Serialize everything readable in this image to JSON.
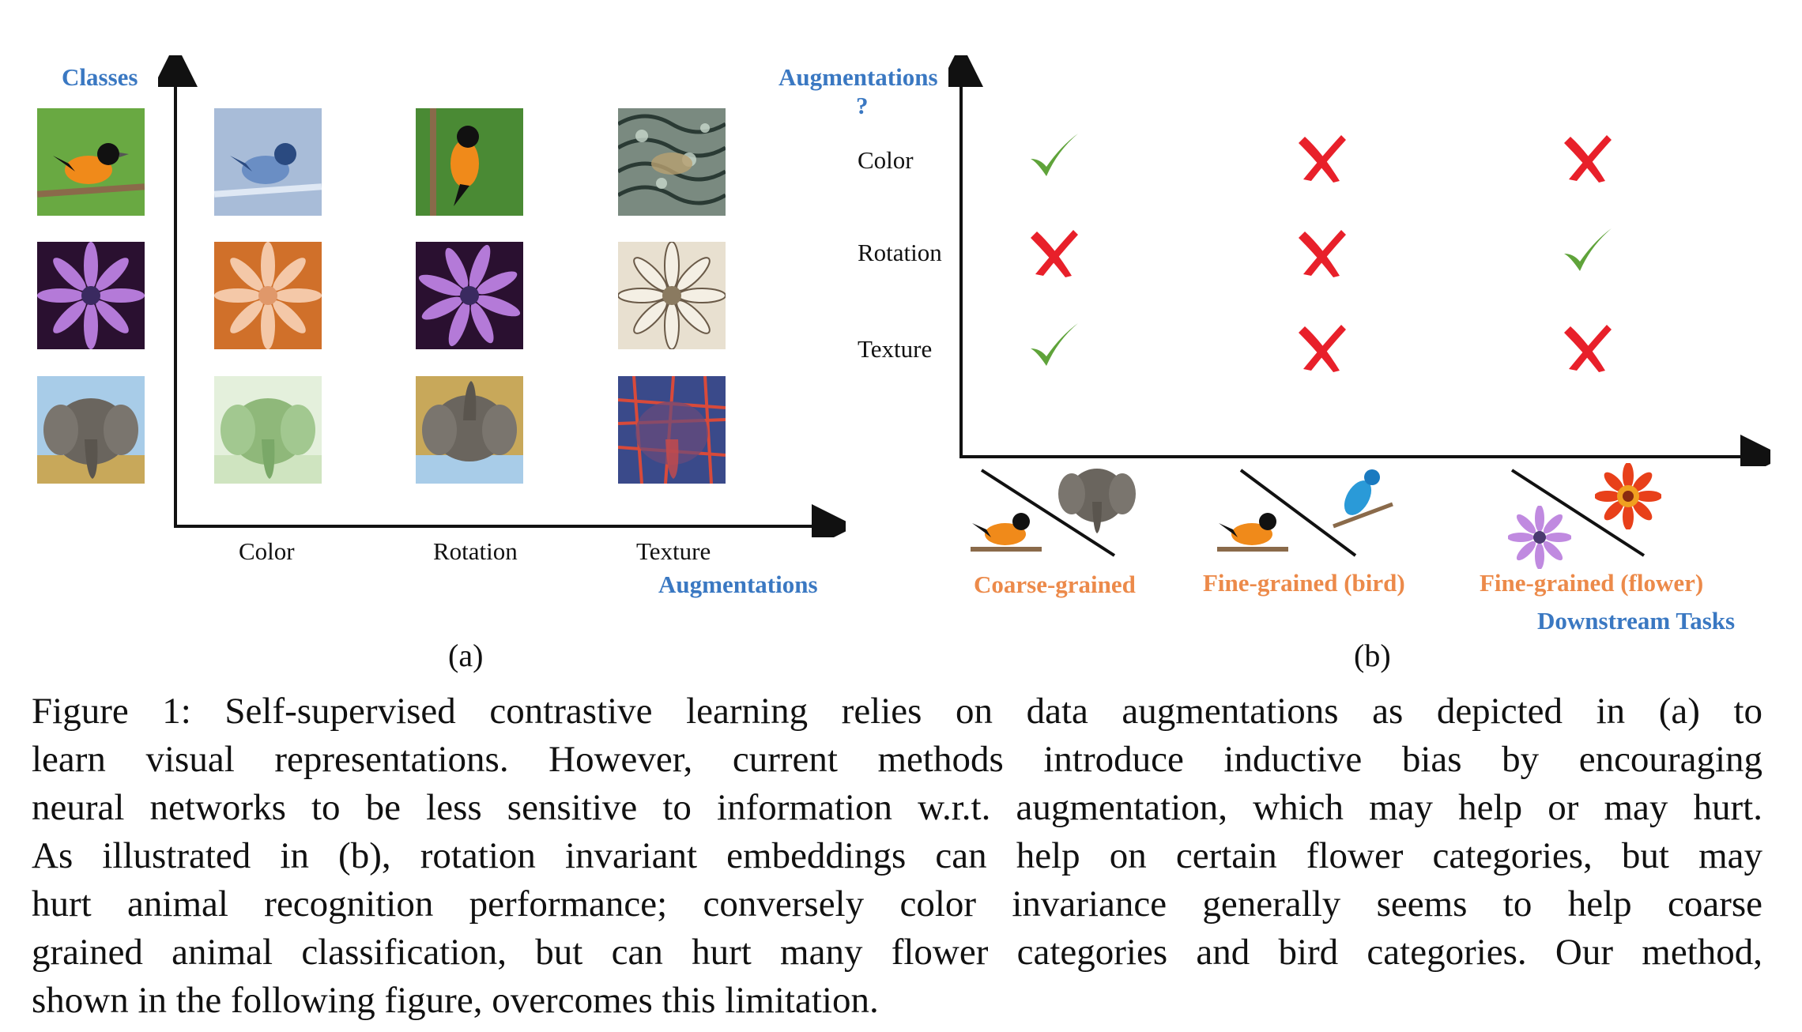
{
  "panel_a": {
    "y_axis_label": "Classes",
    "x_axis_label": "Augmentations",
    "x_ticks": [
      "Color",
      "Rotation",
      "Texture"
    ],
    "sub_label": "(a)",
    "classes": [
      "bird",
      "flower",
      "elephant"
    ]
  },
  "panel_b": {
    "y_axis_label_line1": "Augmentations",
    "y_axis_label_line2": "?",
    "x_axis_label": "Downstream Tasks",
    "rows": [
      "Color",
      "Rotation",
      "Texture"
    ],
    "tasks": [
      "Coarse-grained",
      "Fine-grained (bird)",
      "Fine-grained (flower)"
    ],
    "sub_label": "(b)",
    "matrix": [
      [
        "check",
        "cross",
        "cross"
      ],
      [
        "cross",
        "cross",
        "check"
      ],
      [
        "check",
        "cross",
        "cross"
      ]
    ],
    "colors": {
      "check": "#5fa33a",
      "cross": "#e8202a",
      "label_blue": "#3a78c2",
      "label_orange": "#ec8a4a"
    }
  },
  "caption": {
    "lines": [
      "Figure 1:  Self-supervised contrastive learning relies on data augmentations as depicted in (a) to",
      "learn visual representations.  However, current methods introduce inductive bias by encouraging",
      "neural networks to be less sensitive to information w.r.t. augmentation, which may help or may hurt.",
      "As illustrated in (b), rotation invariant embeddings can help on certain flower categories, but may",
      "hurt animal recognition performance; conversely color invariance generally seems to help coarse",
      "grained animal classification, but can hurt many flower categories and bird categories. Our method,",
      "shown in the following figure, overcomes this limitation."
    ]
  }
}
